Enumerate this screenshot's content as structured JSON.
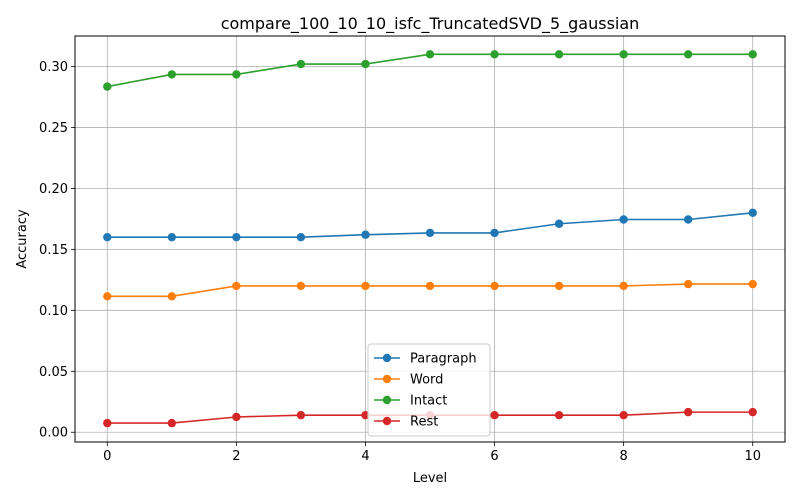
{
  "chart_data": {
    "type": "line",
    "title": "compare_100_10_10_isfc_TruncatedSVD_5_gaussian",
    "xlabel": "Level",
    "ylabel": "Accuracy",
    "x": [
      0,
      1,
      2,
      3,
      4,
      5,
      6,
      7,
      8,
      9,
      10
    ],
    "xlim": [
      -0.5,
      10.5
    ],
    "ylim": [
      -0.008,
      0.325
    ],
    "xticks": [
      0,
      2,
      4,
      6,
      8,
      10
    ],
    "xtick_labels": [
      "0",
      "2",
      "4",
      "6",
      "8",
      "10"
    ],
    "yticks": [
      0.0,
      0.05,
      0.1,
      0.15,
      0.2,
      0.25,
      0.3
    ],
    "ytick_labels": [
      "0.00",
      "0.05",
      "0.10",
      "0.15",
      "0.20",
      "0.25",
      "0.30"
    ],
    "grid": true,
    "legend_position": "bottom-center",
    "series": [
      {
        "name": "Paragraph",
        "color": "#1f77b4",
        "values": [
          0.16,
          0.16,
          0.16,
          0.16,
          0.162,
          0.1635,
          0.1635,
          0.171,
          0.1745,
          0.1745,
          0.18
        ]
      },
      {
        "name": "Word",
        "color": "#ff7f0e",
        "values": [
          0.1115,
          0.1115,
          0.12,
          0.12,
          0.12,
          0.12,
          0.12,
          0.12,
          0.12,
          0.1215,
          0.1215
        ]
      },
      {
        "name": "Intact",
        "color": "#2ca02c",
        "values": [
          0.2835,
          0.2935,
          0.2935,
          0.302,
          0.302,
          0.31,
          0.31,
          0.31,
          0.31,
          0.31,
          0.31
        ]
      },
      {
        "name": "Rest",
        "color": "#d62728",
        "values": [
          0.0075,
          0.0075,
          0.0125,
          0.014,
          0.014,
          0.014,
          0.014,
          0.014,
          0.014,
          0.0165,
          0.0165
        ]
      }
    ]
  }
}
